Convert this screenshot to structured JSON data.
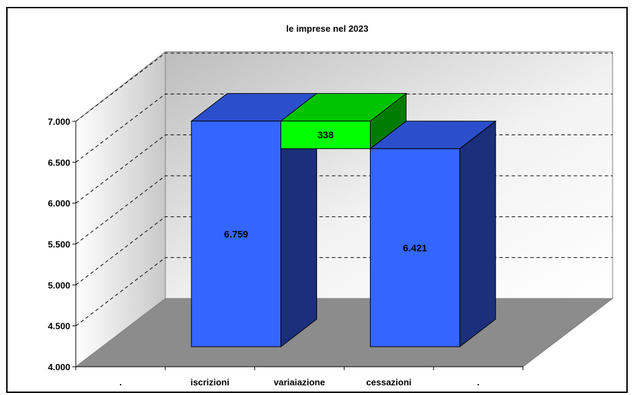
{
  "chart_data": {
    "type": "bar",
    "title": "le imprese nel 2023",
    "categories": [
      ".",
      "iscrizioni",
      "variaiazione",
      "cessazioni",
      "."
    ],
    "bars": [
      {
        "category": "iscrizioni",
        "bottom": 4000,
        "top": 6759,
        "label": "6.759",
        "color": "blue"
      },
      {
        "category": "variaiazione",
        "bottom": 6421,
        "top": 6759,
        "label": "338",
        "color": "green"
      },
      {
        "category": "cessazioni",
        "bottom": 4000,
        "top": 6421,
        "label": "6.421",
        "color": "blue"
      }
    ],
    "ylim": [
      4000,
      7000
    ],
    "yticks": [
      {
        "value": 4000,
        "label": "4.000"
      },
      {
        "value": 4500,
        "label": "4.500"
      },
      {
        "value": 5000,
        "label": "5.000"
      },
      {
        "value": 5500,
        "label": "5.500"
      },
      {
        "value": 6000,
        "label": "6.000"
      },
      {
        "value": 6500,
        "label": "6.500"
      },
      {
        "value": 7000,
        "label": "7.000"
      }
    ],
    "grid": true,
    "colors": {
      "blue_front": "#3366ff",
      "blue_top": "#2b4fcc",
      "blue_side": "#1b2f7d",
      "green_front": "#00ff00",
      "green_top": "#00c400",
      "green_side": "#007d00",
      "floor": "#8c8c8c"
    }
  }
}
